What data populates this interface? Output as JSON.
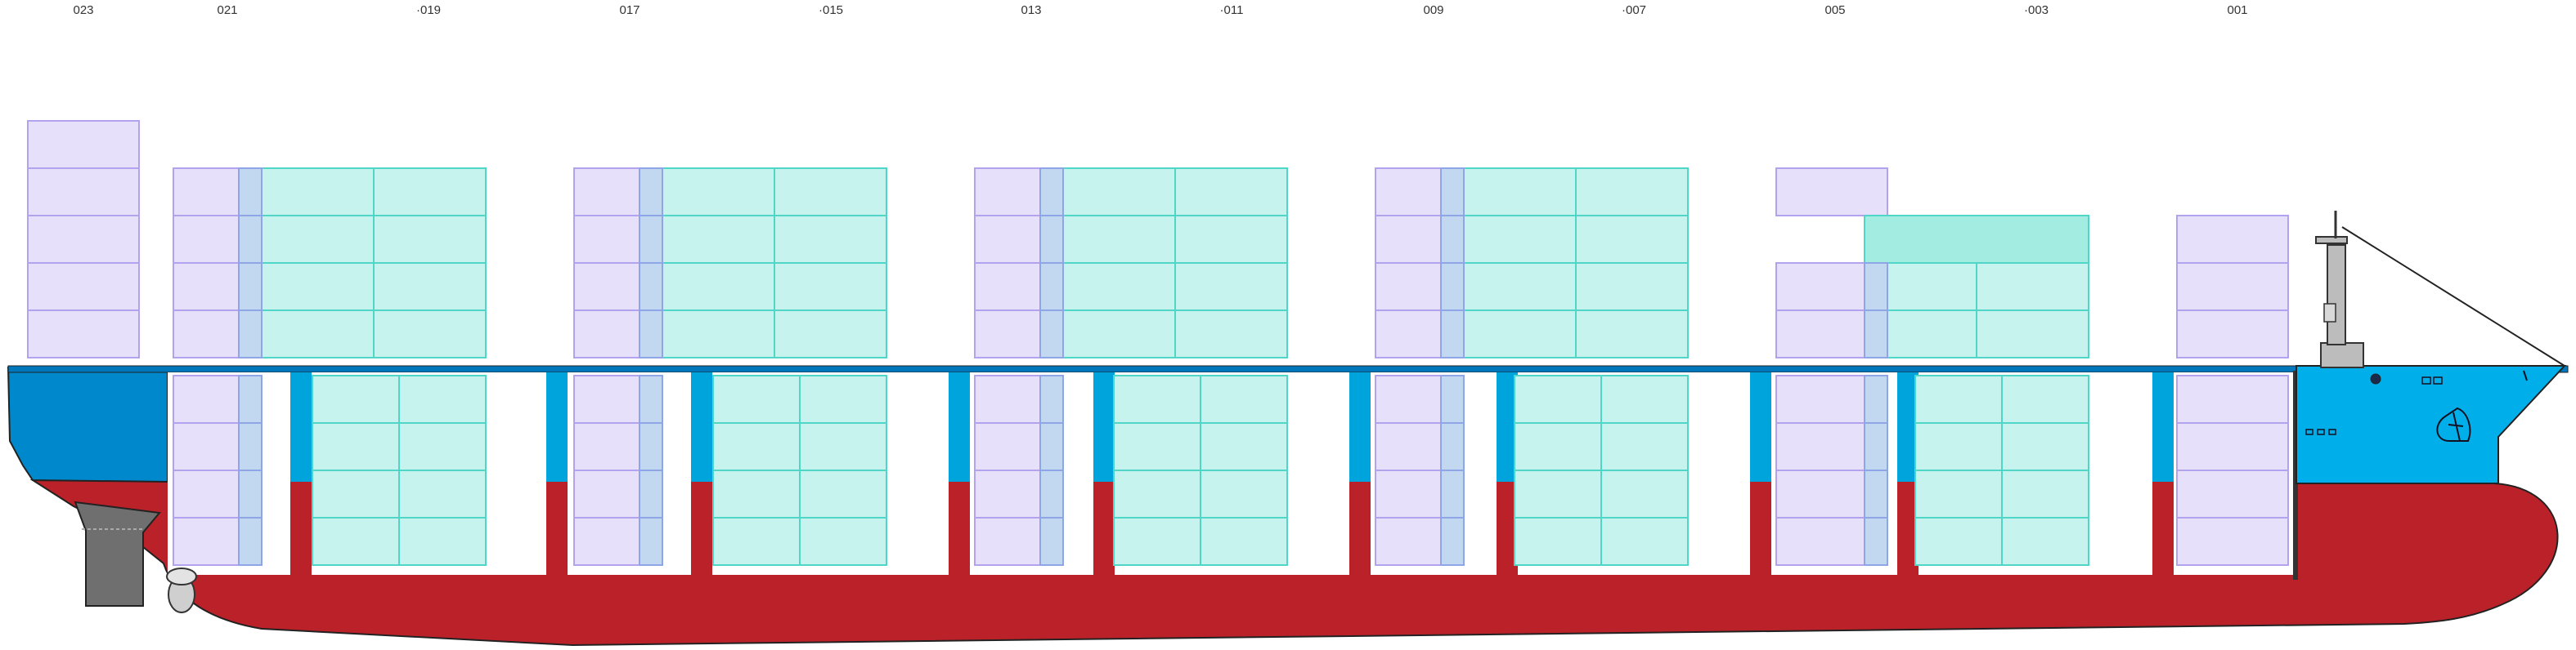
{
  "bay_labels": [
    {
      "name": "bay-023",
      "text": "023"
    },
    {
      "name": "bay-021",
      "text": "021"
    },
    {
      "name": "bay-019",
      "text": "·019"
    },
    {
      "name": "bay-017",
      "text": "017"
    },
    {
      "name": "bay-015",
      "text": "·015"
    },
    {
      "name": "bay-013",
      "text": "013"
    },
    {
      "name": "bay-011",
      "text": "·011"
    },
    {
      "name": "bay-009",
      "text": "009"
    },
    {
      "name": "bay-007",
      "text": "·007"
    },
    {
      "name": "bay-005",
      "text": "005"
    },
    {
      "name": "bay-003",
      "text": "·003"
    },
    {
      "name": "bay-001",
      "text": "001"
    }
  ],
  "colors": {
    "hull_red": "#bb2129",
    "hull_blue": "#00aeea",
    "hull_blue_dark": "#0088cc",
    "forty_foot_fill": "#c6f3ee",
    "forty_foot_stroke": "#4fd6c6",
    "forty_foot_highlight": "#a3ece2",
    "twenty_foot_fill": "#e6e0fa",
    "twenty_foot_stroke": "#b3a2ee",
    "overlap_fill": "#c2d7f0",
    "rudder": "#6f6f6f",
    "mast": "#bcbcbc"
  },
  "icons": [
    "rudder-icon",
    "propeller-icon",
    "mast-icon",
    "anchor-icon",
    "bow-thruster-icon"
  ]
}
